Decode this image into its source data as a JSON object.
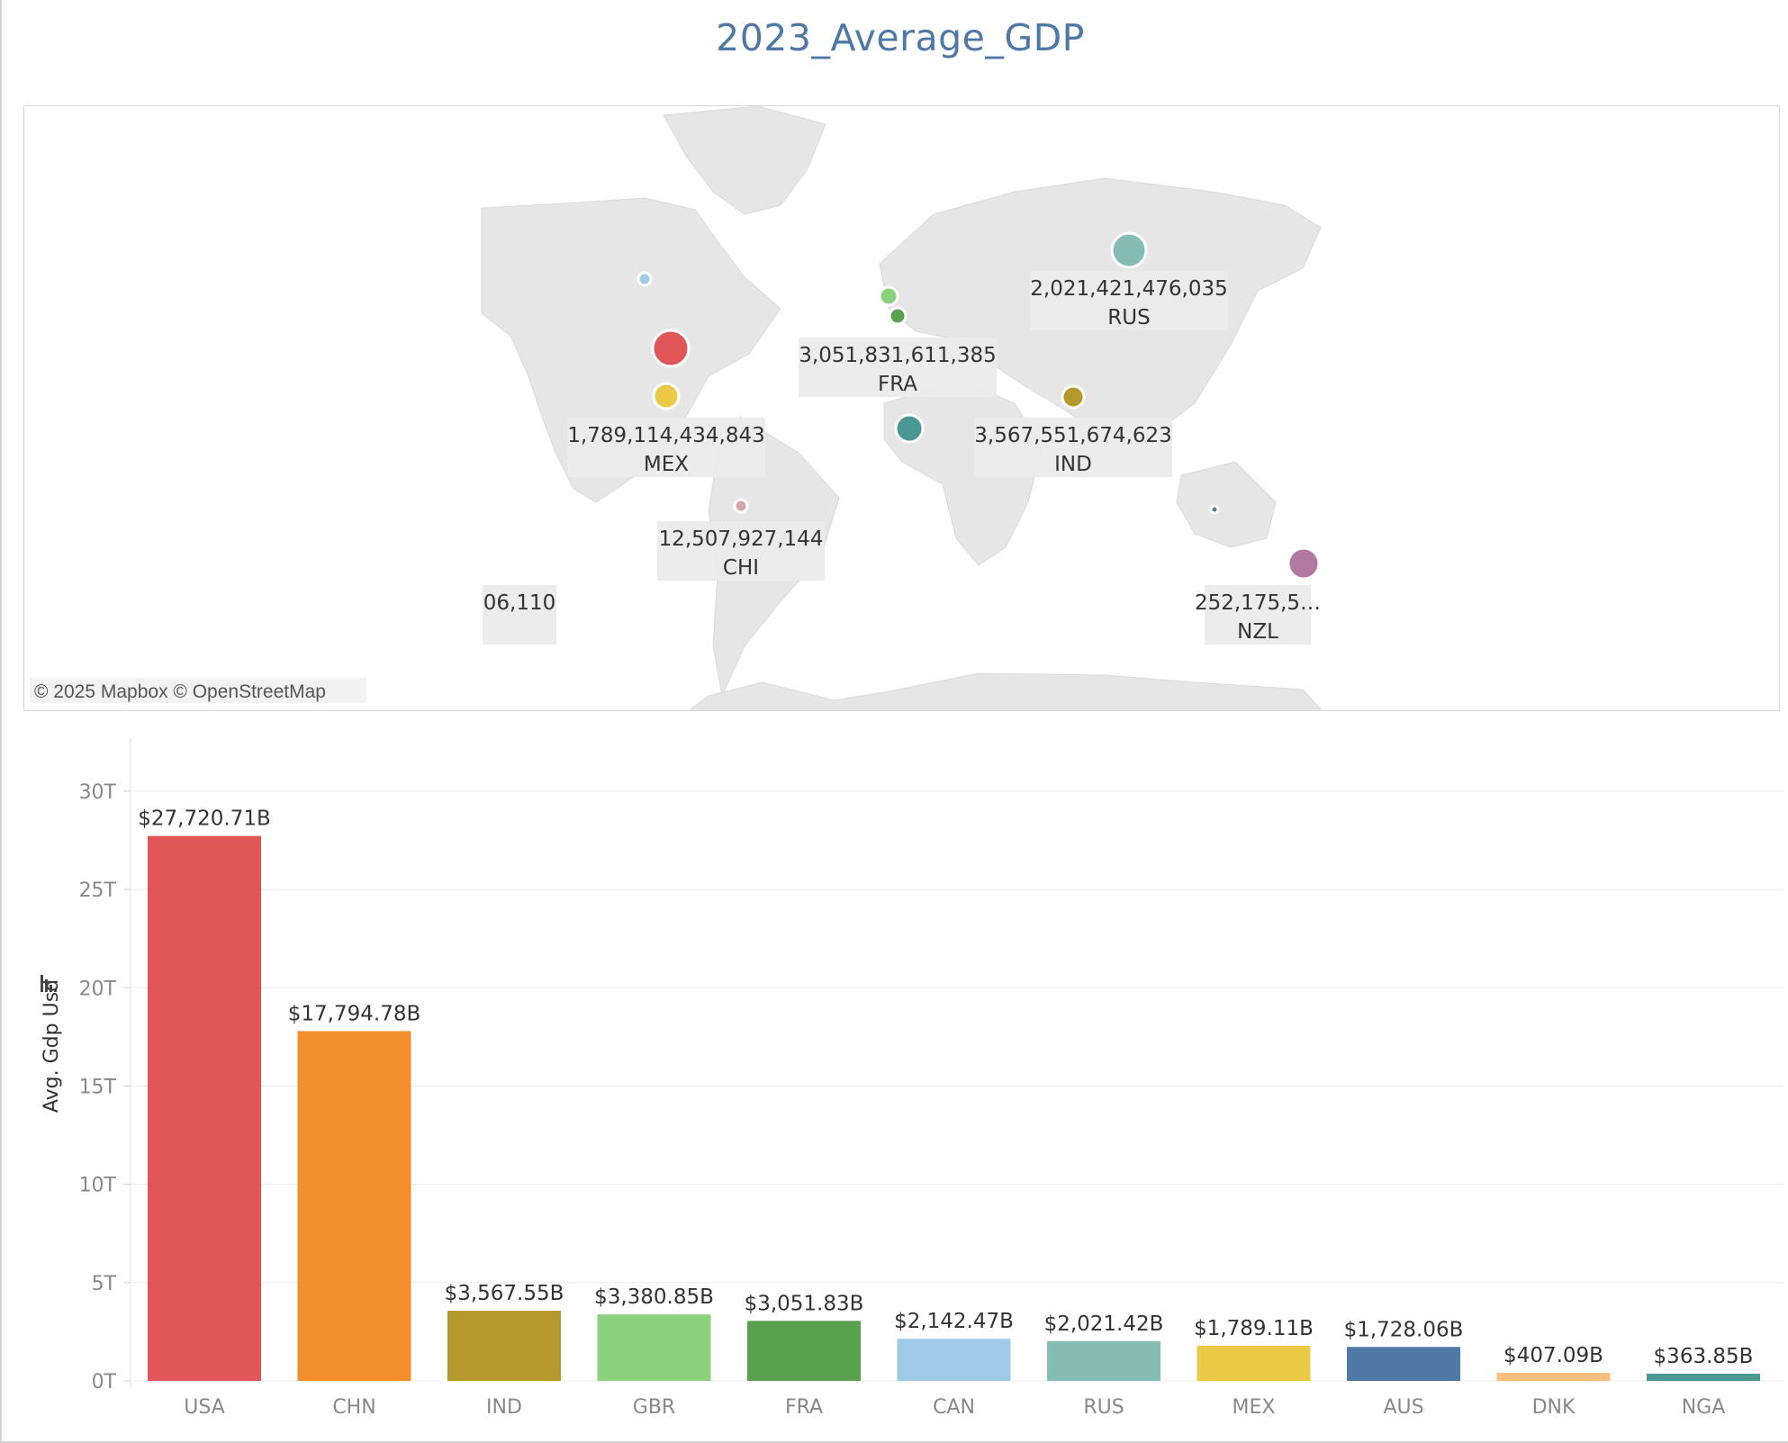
{
  "title": "2023_Average_GDP",
  "map": {
    "attribution": "© 2025 Mapbox © OpenStreetMap",
    "points": [
      {
        "code": "USA",
        "value_label": "",
        "color": "#e15759",
        "size": 27720.71
      },
      {
        "code": "MEX",
        "value_label": "1,789,114,434,843",
        "color": "#edc948",
        "size": 1789.11
      },
      {
        "code": "CAN",
        "value_label": "",
        "color": "#a0cbe8",
        "size": 2142.47
      },
      {
        "code": "GBR",
        "value_label": "",
        "color": "#8cd17d",
        "size": 3380.85
      },
      {
        "code": "FRA",
        "value_label": "3,051,831,611,385",
        "color": "#59a14f",
        "size": 3051.83
      },
      {
        "code": "RUS",
        "value_label": "2,021,421,476,035",
        "color": "#86bcb6",
        "size": 2021.42
      },
      {
        "code": "IND",
        "value_label": "3,567,551,674,623",
        "color": "#b6992d",
        "size": 3567.55
      },
      {
        "code": "NGA",
        "value_label": "",
        "color": "#499894",
        "size": 363.85
      },
      {
        "code": "CHI",
        "value_label": "12,507,927,144",
        "color": "#d4a6a6",
        "size": 12.51
      },
      {
        "code": "AUS",
        "value_label": "",
        "color": "#4e79a7",
        "size": 1728.06
      },
      {
        "code": "NZL",
        "value_label": "252,175,5…",
        "color": "#b07aa1",
        "size": 252.18
      },
      {
        "code": "",
        "value_label": "06,110",
        "color": "#cccccc",
        "size": 0
      }
    ]
  },
  "chart_data": {
    "type": "bar",
    "title": "2023_Average_GDP",
    "xlabel": "",
    "ylabel": "Avg. Gdp Usd",
    "categories": [
      "USA",
      "CHN",
      "IND",
      "GBR",
      "FRA",
      "CAN",
      "RUS",
      "MEX",
      "AUS",
      "DNK",
      "NGA"
    ],
    "values": [
      27720.71,
      17794.78,
      3567.55,
      3380.85,
      3051.83,
      2142.47,
      2021.42,
      1789.11,
      1728.06,
      407.09,
      363.85
    ],
    "value_unit": "billions USD",
    "data_labels": [
      "$27,720.71B",
      "$17,794.78B",
      "$3,567.55B",
      "$3,380.85B",
      "$3,051.83B",
      "$2,142.47B",
      "$2,021.42B",
      "$1,789.11B",
      "$1,728.06B",
      "$407.09B",
      "$363.85B"
    ],
    "colors": [
      "#e15759",
      "#f28e2b",
      "#b6992d",
      "#8cd17d",
      "#59a14f",
      "#a0cbe8",
      "#86bcb6",
      "#edc948",
      "#4e79a7",
      "#ffbe7d",
      "#499894"
    ],
    "yticks": [
      0,
      5000,
      10000,
      15000,
      20000,
      25000,
      30000
    ],
    "ytick_labels": [
      "0T",
      "5T",
      "10T",
      "15T",
      "20T",
      "25T",
      "30T"
    ],
    "ylim": [
      0,
      30500
    ],
    "grid": true,
    "legend": "none",
    "sort_icon": "sort-descending-icon"
  }
}
